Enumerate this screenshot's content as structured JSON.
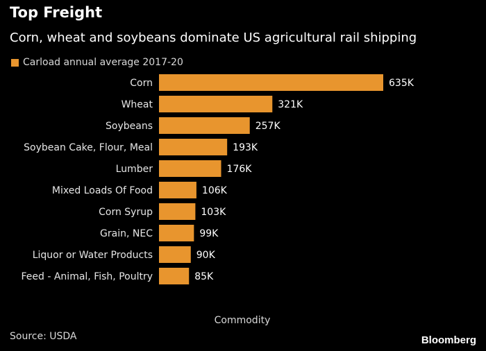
{
  "header": {
    "title": "Top Freight",
    "subtitle": "Corn, wheat and soybeans dominate US agricultural rail shipping"
  },
  "footer": {
    "source": "Source: USDA",
    "brand": "Bloomberg"
  },
  "colors": {
    "bar": "#e8952e",
    "background": "#000000"
  },
  "chart_data": {
    "type": "bar",
    "orientation": "horizontal",
    "categories": [
      "Corn",
      "Wheat",
      "Soybeans",
      "Soybean Cake, Flour, Meal",
      "Lumber",
      "Mixed Loads Of Food",
      "Corn Syrup",
      "Grain, NEC",
      "Liquor or Water Products",
      "Feed - Animal, Fish, Poultry"
    ],
    "series": [
      {
        "name": "Carload annual average 2017-20",
        "values": [
          635000,
          321000,
          257000,
          193000,
          176000,
          106000,
          103000,
          99000,
          90000,
          85000
        ]
      }
    ],
    "data_labels": [
      "635K",
      "321K",
      "257K",
      "193K",
      "176K",
      "106K",
      "103K",
      "99K",
      "90K",
      "85K"
    ],
    "xlabel": "Commodity",
    "xlim": [
      0,
      635000
    ],
    "grid": false,
    "legend": "top-left"
  }
}
